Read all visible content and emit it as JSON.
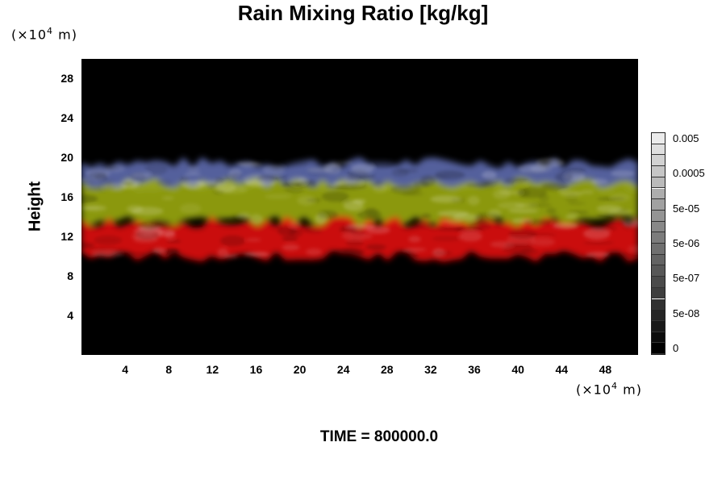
{
  "chart_data": {
    "type": "heatmap",
    "title": "Rain Mixing Ratio [kg/kg]",
    "ylabel": "Height",
    "x_unit": {
      "prefix": "(×10",
      "exp": "4",
      "suffix": " m)"
    },
    "y_unit": {
      "prefix": "(×10",
      "exp": "4",
      "suffix": " m)"
    },
    "xlim": [
      0,
      51
    ],
    "ylim": [
      0,
      30
    ],
    "x_ticks": [
      "4",
      "8",
      "12",
      "16",
      "20",
      "24",
      "28",
      "32",
      "36",
      "40",
      "44",
      "48"
    ],
    "y_ticks": [
      "28",
      "24",
      "20",
      "16",
      "12",
      "8",
      "4"
    ],
    "colorbar": {
      "labels": [
        "0.005",
        "0.0005",
        "5e-05",
        "5e-06",
        "5e-07",
        "5e-08",
        "0"
      ],
      "range": [
        0,
        0.005
      ]
    },
    "layers": [
      {
        "color": "#e01010",
        "y_range": [
          10,
          13.5
        ]
      },
      {
        "color": "#9aa810",
        "y_range": [
          13.5,
          17.5
        ]
      },
      {
        "color": "#7080d0",
        "y_range": [
          17,
          19.5
        ]
      }
    ],
    "footer": "TIME = 800000.0"
  },
  "colors": {
    "background": "#000000",
    "red": "#e01010",
    "yellow": "#9aa810",
    "blue": "#7080d0"
  }
}
